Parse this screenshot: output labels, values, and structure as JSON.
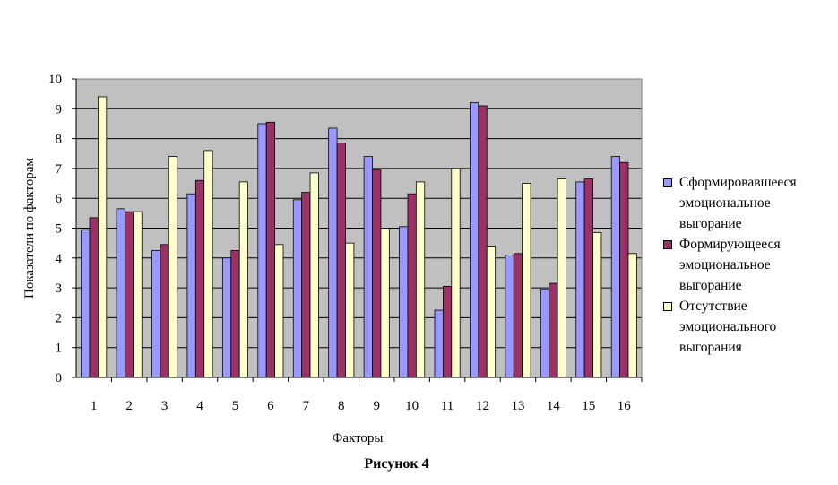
{
  "chart_data": {
    "type": "bar",
    "title": "",
    "xlabel": "Факторы",
    "ylabel": "Показатели по факторам",
    "ylim": [
      0,
      10
    ],
    "yticks": [
      0,
      1,
      2,
      3,
      4,
      5,
      6,
      7,
      8,
      9,
      10
    ],
    "categories": [
      "1",
      "2",
      "3",
      "4",
      "5",
      "6",
      "7",
      "8",
      "9",
      "10",
      "11",
      "12",
      "13",
      "14",
      "15",
      "16"
    ],
    "grid": true,
    "legend_position": "right",
    "series": [
      {
        "name": "Сформировавшееся эмоциональное выгорание",
        "color": "#9999ff",
        "values": [
          4.95,
          5.65,
          4.25,
          6.15,
          4.0,
          8.5,
          5.95,
          8.35,
          7.4,
          5.05,
          2.25,
          9.2,
          4.1,
          2.95,
          6.55,
          7.4
        ]
      },
      {
        "name": "Формирующееся эмоциональное выгорание",
        "color": "#993366",
        "values": [
          5.35,
          5.55,
          4.45,
          6.6,
          4.25,
          8.55,
          6.2,
          7.85,
          6.95,
          6.15,
          3.05,
          9.1,
          4.15,
          3.15,
          6.65,
          7.2
        ]
      },
      {
        "name": "Отсутствие эмоционального выгорания",
        "color": "#ffffcc",
        "values": [
          9.4,
          5.55,
          7.4,
          7.6,
          6.55,
          4.45,
          6.85,
          4.5,
          5.0,
          6.55,
          7.0,
          4.4,
          6.5,
          6.65,
          4.85,
          4.15
        ]
      }
    ],
    "plot_background": "#c0c0c0"
  },
  "legend_lines": [
    [
      "Сформировавшееся",
      "эмоциональное",
      "выгорание"
    ],
    [
      "Формирующееся",
      "эмоциональное",
      "выгорание"
    ],
    [
      "Отсутствие",
      "эмоционального",
      "выгорания"
    ]
  ],
  "caption": "Рисунок 4"
}
